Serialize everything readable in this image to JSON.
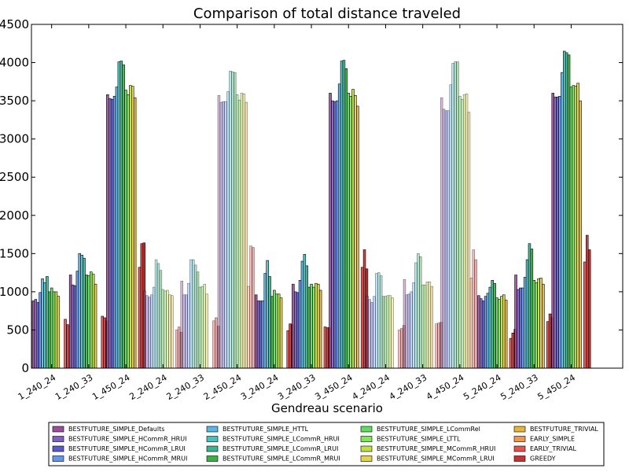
{
  "chart_data": {
    "type": "bar",
    "title": "Comparison of total distance traveled",
    "xlabel": "Gendreau scenario",
    "ylabel": "",
    "ylim": [
      0,
      4500
    ],
    "yticks": [
      "0",
      "500",
      "1000",
      "1500",
      "2000",
      "2500",
      "3000",
      "3500",
      "4000",
      "4500"
    ],
    "grid": false,
    "legend_position": "bottom",
    "categories": [
      "1_240_24",
      "1_240_33",
      "1_450_24",
      "2_240_24",
      "2_240_33",
      "2_450_24",
      "3_240_24",
      "3_240_33",
      "3_450_24",
      "4_240_24",
      "4_240_33",
      "4_450_24",
      "5_240_24",
      "5_240_33",
      "5_450_24"
    ],
    "faded_categories": [
      3,
      4,
      5,
      9,
      10,
      11
    ],
    "series": [
      {
        "name": "BESTFUTURE_SIMPLE_Defaults",
        "color": "#9b4f9b",
        "values": [
          880,
          1220,
          3580,
          1010,
          1140,
          3570,
          960,
          1100,
          3600,
          940,
          1160,
          3540,
          950,
          1220,
          3600
        ]
      },
      {
        "name": "BESTFUTURE_SIMPLE_HCommR_HRUI",
        "color": "#7f5fbf",
        "values": [
          900,
          1090,
          3530,
          950,
          960,
          3480,
          880,
          1000,
          3500,
          900,
          960,
          3390,
          910,
          1030,
          3550
        ]
      },
      {
        "name": "BESTFUTURE_SIMPLE_HCommR_LRUI",
        "color": "#5a5acd",
        "values": [
          860,
          1080,
          3520,
          930,
          960,
          3490,
          880,
          990,
          3490,
          860,
          970,
          3370,
          880,
          1050,
          3550
        ]
      },
      {
        "name": "BESTFUTURE_SIMPLE_HCommR_MRUI",
        "color": "#6495ed",
        "values": [
          990,
          1270,
          3560,
          960,
          1110,
          3490,
          880,
          1150,
          3500,
          940,
          1000,
          3370,
          940,
          1050,
          3560
        ]
      },
      {
        "name": "BESTFUTURE_SIMPLE_HTTL",
        "color": "#5fb4e6",
        "values": [
          1170,
          1500,
          3680,
          1060,
          1420,
          3620,
          1240,
          1400,
          3720,
          1240,
          1120,
          3710,
          980,
          1190,
          3870
        ]
      },
      {
        "name": "BESTFUTURE_SIMPLE_LCommR_HRUI",
        "color": "#48c0c0",
        "values": [
          1120,
          1480,
          4010,
          1420,
          1420,
          3890,
          1410,
          1490,
          4020,
          1250,
          1380,
          3990,
          1060,
          1420,
          4150
        ]
      },
      {
        "name": "BESTFUTURE_SIMPLE_LCommR_LRUI",
        "color": "#3cb490",
        "values": [
          1200,
          1440,
          4020,
          1370,
          1350,
          3880,
          1200,
          1340,
          4030,
          1210,
          1500,
          4010,
          1150,
          1630,
          4130
        ]
      },
      {
        "name": "BESTFUTURE_SIMPLE_LCommR_MRUI",
        "color": "#3cb043",
        "values": [
          1000,
          1220,
          3970,
          1280,
          1260,
          3870,
          940,
          1060,
          3920,
          940,
          1460,
          4010,
          1110,
          1560,
          4100
        ]
      },
      {
        "name": "BESTFUTURE_SIMPLE_LCommRel",
        "color": "#5fdc5f",
        "values": [
          1050,
          1210,
          3640,
          1030,
          1060,
          3580,
          1020,
          1100,
          3600,
          940,
          1090,
          3560,
          920,
          1150,
          3680
        ]
      },
      {
        "name": "BESTFUTURE_SIMPLE_LTTL",
        "color": "#7fe65a",
        "values": [
          1000,
          1260,
          3580,
          1010,
          1070,
          3510,
          970,
          1060,
          3560,
          950,
          1090,
          3520,
          900,
          1120,
          3700
        ]
      },
      {
        "name": "BESTFUTURE_SIMPLE_MCommR_HRUI",
        "color": "#bde03c",
        "values": [
          1000,
          1230,
          3700,
          1020,
          1100,
          3600,
          970,
          1110,
          3650,
          950,
          1130,
          3580,
          940,
          1170,
          3690
        ]
      },
      {
        "name": "BESTFUTURE_SIMPLE_MCommR_LRUI",
        "color": "#e6d24b",
        "values": [
          940,
          1100,
          3690,
          960,
          970,
          3590,
          920,
          1100,
          3570,
          920,
          1130,
          3590,
          960,
          1180,
          3730
        ]
      },
      {
        "name": "BESTFUTURE_TRIVIAL",
        "color": "#e6b43c",
        "values": [
          0,
          0,
          3540,
          950,
          0,
          3480,
          0,
          1020,
          3430,
          0,
          1070,
          3350,
          890,
          1100,
          3500
        ]
      },
      {
        "name": "EARLY_SIMPLE",
        "color": "#f09650",
        "values": [
          0,
          0,
          0,
          0,
          0,
          1070,
          0,
          0,
          0,
          0,
          0,
          1180,
          0,
          0,
          0
        ]
      },
      {
        "name": "EARLY_TRIVIAL",
        "color": "#e65050",
        "values": [
          640,
          680,
          1320,
          500,
          620,
          1600,
          490,
          540,
          1320,
          500,
          580,
          1550,
          390,
          610,
          1390
        ]
      },
      {
        "name": "GREEDY",
        "color": "#c83232",
        "values": [
          570,
          660,
          1630,
          540,
          660,
          1580,
          580,
          530,
          1550,
          520,
          590,
          1420,
          460,
          710,
          1740
        ]
      },
      {
        "name": "",
        "color": "#b41e1e",
        "values": [
          0,
          620,
          1640,
          470,
          550,
          0,
          570,
          530,
          1300,
          560,
          600,
          0,
          510,
          660,
          1550
        ]
      }
    ]
  }
}
